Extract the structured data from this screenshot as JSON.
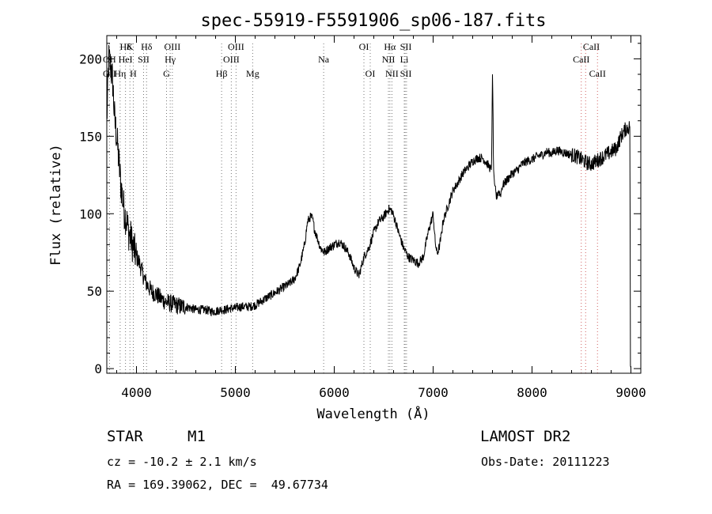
{
  "chart_data": {
    "type": "line",
    "title": "spec-55919-F5591906_sp06-187.fits",
    "xlabel": "Wavelength (Å)",
    "ylabel": "Flux (relative)",
    "xlim": [
      3700,
      9100
    ],
    "ylim": [
      -3,
      215
    ],
    "xticks": [
      4000,
      5000,
      6000,
      7000,
      8000,
      9000
    ],
    "yticks": [
      0,
      50,
      100,
      150,
      200
    ],
    "grid": false,
    "legend": "none",
    "series": [
      {
        "x": [
          3700,
          3720,
          3740,
          3760,
          3780,
          3800,
          3820,
          3840,
          3860,
          3880,
          3900,
          3920,
          3940,
          3960,
          3980,
          4000,
          4020,
          4040,
          4060,
          4080,
          4100,
          4150,
          4200,
          4250,
          4300,
          4350,
          4400,
          4450,
          4500,
          4550,
          4600,
          4650,
          4700,
          4750,
          4800,
          4850,
          4900,
          4950,
          5000,
          5050,
          5100,
          5150,
          5200,
          5250,
          5300,
          5350,
          5400,
          5450,
          5500,
          5550,
          5600,
          5650,
          5700,
          5730,
          5760,
          5780,
          5800,
          5830,
          5860,
          5900,
          5950,
          6000,
          6050,
          6100,
          6150,
          6200,
          6250,
          6300,
          6350,
          6400,
          6450,
          6500,
          6550,
          6580,
          6620,
          6650,
          6700,
          6750,
          6800,
          6850,
          6900,
          6950,
          7000,
          7020,
          7040,
          7060,
          7080,
          7100,
          7150,
          7200,
          7250,
          7300,
          7350,
          7400,
          7450,
          7500,
          7550,
          7590,
          7600,
          7605,
          7610,
          7620,
          7640,
          7660,
          7680,
          7700,
          7750,
          7800,
          7850,
          7900,
          7950,
          8000,
          8050,
          8100,
          8150,
          8200,
          8250,
          8300,
          8350,
          8400,
          8450,
          8500,
          8550,
          8600,
          8650,
          8700,
          8750,
          8800,
          8850,
          8900,
          8950,
          8990,
          8995,
          9000
        ],
        "y": [
          160,
          200,
          195,
          185,
          160,
          150,
          135,
          120,
          110,
          100,
          96,
          88,
          85,
          80,
          76,
          72,
          70,
          66,
          62,
          58,
          55,
          50,
          48,
          45,
          43,
          42,
          41,
          40,
          40,
          39,
          38,
          38,
          38,
          37,
          37,
          38,
          38,
          39,
          39,
          40,
          40,
          40,
          41,
          43,
          45,
          47,
          49,
          51,
          53,
          55,
          58,
          66,
          80,
          95,
          98,
          97,
          90,
          84,
          78,
          75,
          78,
          80,
          82,
          79,
          74,
          65,
          60,
          72,
          78,
          88,
          95,
          98,
          103,
          102,
          95,
          88,
          78,
          72,
          70,
          68,
          72,
          88,
          100,
          82,
          74,
          78,
          85,
          95,
          105,
          115,
          120,
          126,
          130,
          134,
          136,
          136,
          132,
          128,
          190,
          170,
          130,
          120,
          110,
          115,
          112,
          118,
          122,
          126,
          128,
          132,
          134,
          135,
          137,
          138,
          140,
          139,
          141,
          140,
          139,
          138,
          137,
          135,
          133,
          132,
          134,
          136,
          138,
          140,
          142,
          150,
          155,
          156,
          2,
          0
        ]
      }
    ],
    "annotations": [
      {
        "label": "Hδ",
        "row": 1,
        "x": 3889,
        "lines": [
          3889
        ]
      },
      {
        "label": "K",
        "row": 1,
        "x": 3934,
        "lines": [
          3934
        ]
      },
      {
        "label": "Hδ",
        "row": 1,
        "x": 4102,
        "lines": [
          4102
        ]
      },
      {
        "label": "OIII",
        "row": 1,
        "x": 4363,
        "lines": [
          4363
        ]
      },
      {
        "label": "OIII",
        "row": 1,
        "x": 5007,
        "lines": [
          5007
        ]
      },
      {
        "label": "OI",
        "row": 1,
        "x": 6300,
        "lines": [
          6300
        ]
      },
      {
        "label": "Hα",
        "row": 1,
        "x": 6563,
        "lines": [
          6563
        ]
      },
      {
        "label": "SII",
        "row": 1,
        "x": 6724,
        "lines": [
          6717,
          6731
        ]
      },
      {
        "label": "CaII",
        "row": 1,
        "x": 8600,
        "lines": []
      },
      {
        "label": "OII",
        "row": 2,
        "x": 3727,
        "lines": [
          3727
        ]
      },
      {
        "label": "HeI",
        "row": 2,
        "x": 3889,
        "lines": []
      },
      {
        "label": "SII",
        "row": 2,
        "x": 4072,
        "lines": [
          4072
        ]
      },
      {
        "label": "Hγ",
        "row": 2,
        "x": 4341,
        "lines": [
          4341
        ]
      },
      {
        "label": "OIII",
        "row": 2,
        "x": 4959,
        "lines": [
          4959
        ]
      },
      {
        "label": "Na",
        "row": 2,
        "x": 5893,
        "lines": [
          5893
        ]
      },
      {
        "label": "NII",
        "row": 2,
        "x": 6548,
        "lines": [
          6548
        ]
      },
      {
        "label": "Li",
        "row": 2,
        "x": 6708,
        "lines": [
          6708
        ]
      },
      {
        "label": "CaII",
        "row": 2,
        "x": 8498,
        "lines": [
          8498
        ]
      },
      {
        "label": "OII",
        "row": 3,
        "x": 3727,
        "lines": []
      },
      {
        "label": "Hη",
        "row": 3,
        "x": 3835,
        "lines": [
          3835
        ]
      },
      {
        "label": "H",
        "row": 3,
        "x": 3968,
        "lines": [
          3968
        ]
      },
      {
        "label": "G",
        "row": 3,
        "x": 4304,
        "lines": [
          4304
        ]
      },
      {
        "label": "Hβ",
        "row": 3,
        "x": 4861,
        "lines": [
          4861
        ]
      },
      {
        "label": "Mg",
        "row": 3,
        "x": 5175,
        "lines": [
          5175
        ]
      },
      {
        "label": "OI",
        "row": 3,
        "x": 6364,
        "lines": [
          6364
        ]
      },
      {
        "label": "NII",
        "row": 3,
        "x": 6583,
        "lines": [
          6583
        ]
      },
      {
        "label": "SII",
        "row": 3,
        "x": 6724,
        "lines": []
      },
      {
        "label": "CaII",
        "row": 3,
        "x": 8662,
        "lines": [
          8542,
          8662
        ]
      }
    ]
  },
  "info": {
    "object_type": "STAR",
    "subclass": "M1",
    "survey": "LAMOST DR2",
    "cz": "cz = -10.2 ± 2.1 km/s",
    "obs_date": "Obs-Date: 20111223",
    "coords": "RA = 169.39062, DEC =  49.67734"
  }
}
